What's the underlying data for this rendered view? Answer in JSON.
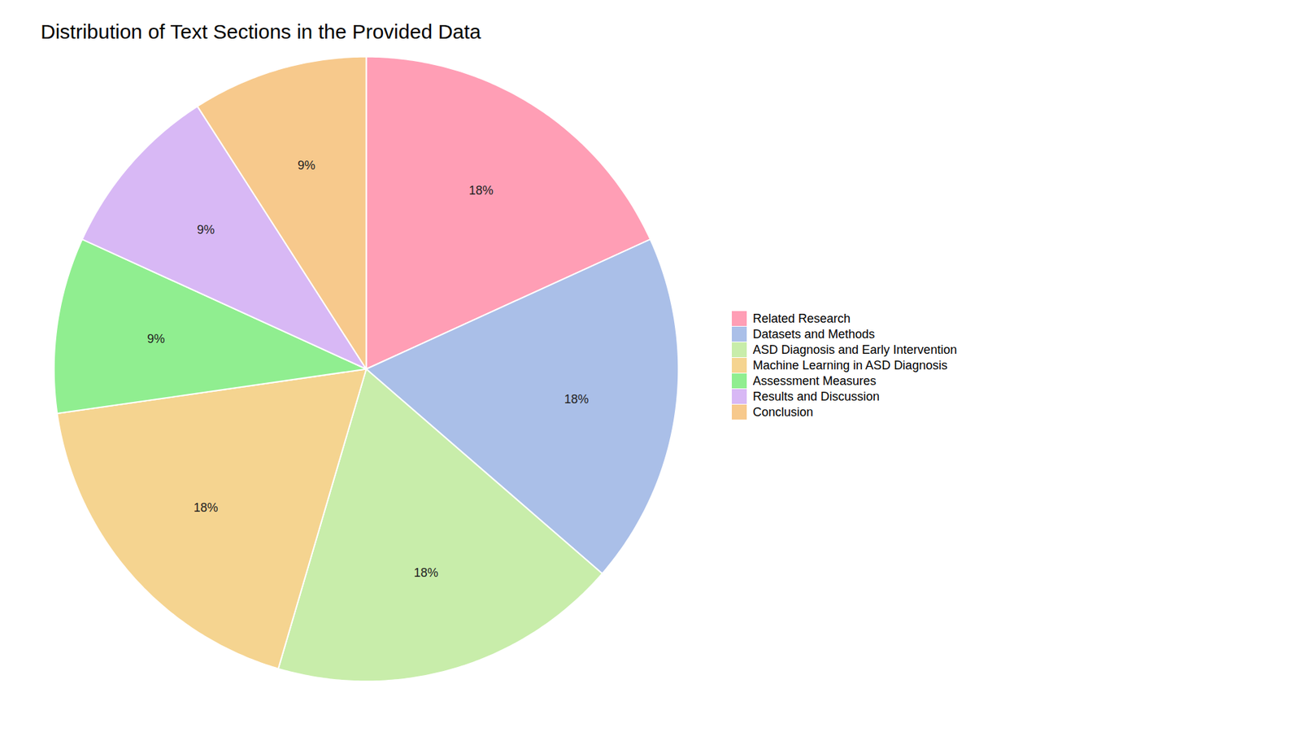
{
  "chart_data": {
    "type": "pie",
    "title": "Distribution of Text Sections in the Provided Data",
    "categories": [
      "Related Research",
      "Datasets and Methods",
      "ASD Diagnosis and Early Intervention",
      "Machine Learning in ASD Diagnosis",
      "Assessment Measures",
      "Results and Discussion",
      "Conclusion"
    ],
    "values": [
      18,
      18,
      18,
      18,
      9,
      9,
      9
    ],
    "value_labels": [
      "18%",
      "18%",
      "18%",
      "18%",
      "9%",
      "9%",
      "9%"
    ],
    "colors": [
      "#FF9EB5",
      "#AABFE8",
      "#C8EDAA",
      "#F5D490",
      "#90EE90",
      "#D8B8F5",
      "#F7C98C"
    ],
    "data_labels": true,
    "legend": "right"
  }
}
